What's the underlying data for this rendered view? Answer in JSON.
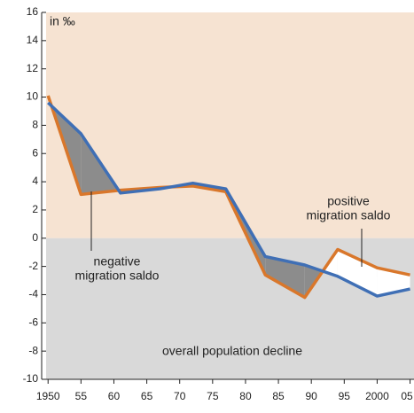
{
  "chart_data": {
    "type": "line",
    "annotations": {
      "unit": "in ‰",
      "negative": [
        "negative",
        "migration saldo"
      ],
      "positive": [
        "positive",
        "migration saldo"
      ],
      "decline": "overall population decline"
    },
    "x": [
      1950,
      1955,
      1961,
      1967,
      1972,
      1977,
      1983,
      1989,
      1994,
      2000,
      2005
    ],
    "series": [
      {
        "color": "#d9772b",
        "values": [
          10.1,
          3.1,
          3.4,
          3.6,
          3.7,
          3.3,
          -2.6,
          -4.2,
          -0.8,
          -2.1,
          -2.6
        ]
      },
      {
        "color": "#3f6fb5",
        "values": [
          9.6,
          7.4,
          3.2,
          3.5,
          3.9,
          3.5,
          -1.3,
          -1.9,
          -2.7,
          -4.1,
          -3.6
        ]
      }
    ],
    "xlim": [
      1949.7,
      2005.6
    ],
    "xticks": [
      1950,
      {
        "value": 1955,
        "label": "55"
      },
      {
        "value": 1960,
        "label": "60"
      },
      {
        "value": 1965,
        "label": "65"
      },
      {
        "value": 1970,
        "label": "70"
      },
      {
        "value": 1975,
        "label": "75"
      },
      {
        "value": 1980,
        "label": "80"
      },
      {
        "value": 1985,
        "label": "85"
      },
      {
        "value": 1990,
        "label": "90"
      },
      {
        "value": 1995,
        "label": "95"
      },
      2000,
      {
        "value": 2005,
        "label": "05"
      }
    ],
    "ylim": [
      -10,
      16
    ],
    "yticks": [
      -10,
      -8,
      -6,
      -4,
      -2,
      0,
      2,
      4,
      6,
      8,
      10,
      12,
      14,
      16
    ],
    "colors": {
      "positive_area": "#f6e3d2",
      "negative_area": "#d9d9d9",
      "negative_saldo": "#8c8c8c",
      "positive_saldo": "#ffffff"
    }
  }
}
